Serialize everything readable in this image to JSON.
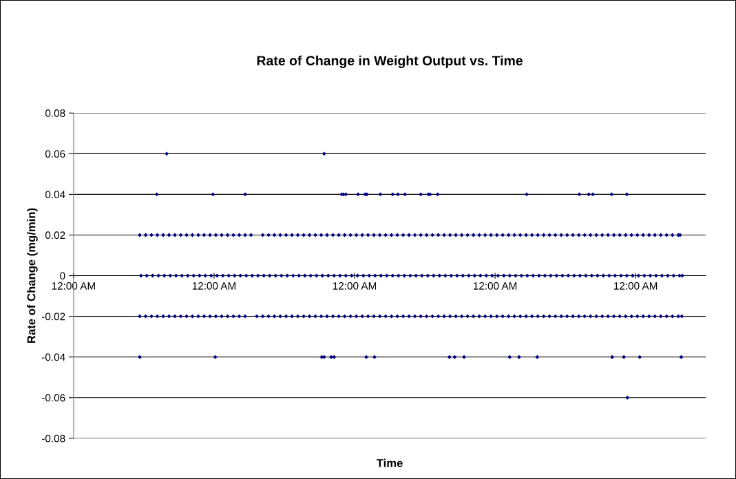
{
  "chart_data": {
    "type": "scatter",
    "title": "Rate of Change in Weight Output vs. Time",
    "xlabel": "Time",
    "ylabel": "Rate of Change (mg/min)",
    "xlim": [
      "2000-01-01T00:00",
      "2000-01-05T12:00"
    ],
    "xticks": [
      {
        "value": "2000-01-01T00:00",
        "label": "12:00 AM"
      },
      {
        "value": "2000-01-02T00:00",
        "label": "12:00 AM"
      },
      {
        "value": "2000-01-03T00:00",
        "label": "12:00 AM"
      },
      {
        "value": "2000-01-04T00:00",
        "label": "12:00 AM"
      },
      {
        "value": "2000-01-05T00:00",
        "label": "12:00 AM"
      }
    ],
    "ylim": [
      -0.08,
      0.08
    ],
    "yticks": [
      -0.08,
      -0.06,
      -0.04,
      -0.02,
      0,
      0.02,
      0.04,
      0.06,
      0.08
    ],
    "grid": "y",
    "marker": "diamond",
    "series": [
      {
        "color": "#000080",
        "x": [
          "2000-01-01T15:54",
          "2000-01-02T18:48",
          "2000-01-01T14:12",
          "2000-01-01T23:48",
          "2000-01-02T05:18",
          "2000-01-02T21:48",
          "2000-01-02T22:06",
          "2000-01-02T22:30",
          "2000-01-03T00:36",
          "2000-01-03T01:48",
          "2000-01-03T02:06",
          "2000-01-03T04:24",
          "2000-01-03T06:30",
          "2000-01-03T07:24",
          "2000-01-03T08:36",
          "2000-01-03T11:18",
          "2000-01-03T12:36",
          "2000-01-03T12:54",
          "2000-01-03T14:12",
          "2000-01-04T05:24",
          "2000-01-04T14:24",
          "2000-01-04T16:00",
          "2000-01-04T16:42",
          "2000-01-04T19:54",
          "2000-01-04T22:30",
          "2000-01-01T11:18",
          "2000-01-02T00:12",
          "2000-01-02T18:24",
          "2000-01-02T18:48",
          "2000-01-02T20:00",
          "2000-01-02T20:30",
          "2000-01-03T02:00",
          "2000-01-03T03:24",
          "2000-01-03T16:12",
          "2000-01-03T17:06",
          "2000-01-03T18:42",
          "2000-01-04T02:30",
          "2000-01-04T04:06",
          "2000-01-04T07:12",
          "2000-01-04T20:00",
          "2000-01-04T22:00",
          "2000-01-05T00:42",
          "2000-01-05T07:48",
          "2000-01-04T22:36"
        ],
        "values": [
          0.06,
          0.06,
          0.04,
          0.04,
          0.04,
          0.04,
          0.04,
          0.04,
          0.04,
          0.04,
          0.04,
          0.04,
          0.04,
          0.04,
          0.04,
          0.04,
          0.04,
          0.04,
          0.04,
          0.04,
          0.04,
          0.04,
          0.04,
          0.04,
          0.04,
          -0.04,
          -0.04,
          -0.04,
          -0.04,
          -0.04,
          -0.04,
          -0.04,
          -0.04,
          -0.04,
          -0.04,
          -0.04,
          -0.04,
          -0.04,
          -0.04,
          -0.04,
          -0.04,
          -0.04,
          -0.04,
          -0.06
        ]
      },
      {
        "color": "#000080",
        "x": [
          "2000-01-01T11:18",
          "2000-01-01T12:18",
          "2000-01-01T13:18",
          "2000-01-01T14:18",
          "2000-01-01T15:18",
          "2000-01-01T16:18",
          "2000-01-01T17:18",
          "2000-01-01T18:18",
          "2000-01-01T19:18",
          "2000-01-01T20:18",
          "2000-01-01T21:18",
          "2000-01-01T22:18",
          "2000-01-01T23:18",
          "2000-01-02T00:18",
          "2000-01-02T01:18",
          "2000-01-02T02:18",
          "2000-01-02T03:18",
          "2000-01-02T04:18",
          "2000-01-02T05:18",
          "2000-01-02T06:18",
          "2000-01-02T08:18",
          "2000-01-02T09:18",
          "2000-01-02T10:18",
          "2000-01-02T11:18",
          "2000-01-02T12:18",
          "2000-01-02T13:18",
          "2000-01-02T14:18",
          "2000-01-02T15:18",
          "2000-01-02T16:18",
          "2000-01-02T17:18",
          "2000-01-02T18:18",
          "2000-01-02T19:18",
          "2000-01-02T20:18",
          "2000-01-02T21:18",
          "2000-01-02T22:18",
          "2000-01-02T23:18",
          "2000-01-03T00:18",
          "2000-01-03T01:18",
          "2000-01-03T02:18",
          "2000-01-03T03:18",
          "2000-01-03T04:18",
          "2000-01-03T05:18",
          "2000-01-03T06:18",
          "2000-01-03T07:18",
          "2000-01-03T08:18",
          "2000-01-03T09:18",
          "2000-01-03T10:18",
          "2000-01-03T11:18",
          "2000-01-03T12:18",
          "2000-01-03T13:18",
          "2000-01-03T14:18",
          "2000-01-03T15:18",
          "2000-01-03T16:18",
          "2000-01-03T17:18",
          "2000-01-03T18:18",
          "2000-01-03T19:18",
          "2000-01-03T20:18",
          "2000-01-03T21:18",
          "2000-01-03T22:18",
          "2000-01-03T23:18",
          "2000-01-04T00:18",
          "2000-01-04T01:18",
          "2000-01-04T02:18",
          "2000-01-04T03:18",
          "2000-01-04T04:18",
          "2000-01-04T05:18",
          "2000-01-04T06:18",
          "2000-01-04T07:18",
          "2000-01-04T08:18",
          "2000-01-04T09:18",
          "2000-01-04T10:18",
          "2000-01-04T11:18",
          "2000-01-04T12:18",
          "2000-01-04T13:18",
          "2000-01-04T14:18",
          "2000-01-04T15:18",
          "2000-01-04T16:18",
          "2000-01-04T17:18",
          "2000-01-04T18:18",
          "2000-01-04T19:18",
          "2000-01-04T20:18",
          "2000-01-04T21:18",
          "2000-01-04T22:18",
          "2000-01-04T23:18",
          "2000-01-05T00:18",
          "2000-01-05T01:18",
          "2000-01-05T02:18",
          "2000-01-05T03:18",
          "2000-01-05T04:18",
          "2000-01-05T05:18",
          "2000-01-05T06:18",
          "2000-01-05T07:18",
          "2000-01-05T07:36"
        ],
        "values": [
          0.02,
          0.02,
          0.02,
          0.02,
          0.02,
          0.02,
          0.02,
          0.02,
          0.02,
          0.02,
          0.02,
          0.02,
          0.02,
          0.02,
          0.02,
          0.02,
          0.02,
          0.02,
          0.02,
          0.02,
          0.02,
          0.02,
          0.02,
          0.02,
          0.02,
          0.02,
          0.02,
          0.02,
          0.02,
          0.02,
          0.02,
          0.02,
          0.02,
          0.02,
          0.02,
          0.02,
          0.02,
          0.02,
          0.02,
          0.02,
          0.02,
          0.02,
          0.02,
          0.02,
          0.02,
          0.02,
          0.02,
          0.02,
          0.02,
          0.02,
          0.02,
          0.02,
          0.02,
          0.02,
          0.02,
          0.02,
          0.02,
          0.02,
          0.02,
          0.02,
          0.02,
          0.02,
          0.02,
          0.02,
          0.02,
          0.02,
          0.02,
          0.02,
          0.02,
          0.02,
          0.02,
          0.02,
          0.02,
          0.02,
          0.02,
          0.02,
          0.02,
          0.02,
          0.02,
          0.02,
          0.02,
          0.02,
          0.02,
          0.02,
          0.02,
          0.02,
          0.02,
          0.02,
          0.02,
          0.02,
          0.02,
          0.02,
          0.02
        ]
      },
      {
        "color": "#000080",
        "x": [
          "2000-01-01T11:18",
          "2000-01-01T12:18",
          "2000-01-01T13:18",
          "2000-01-01T14:18",
          "2000-01-01T15:18",
          "2000-01-01T16:18",
          "2000-01-01T17:18",
          "2000-01-01T18:18",
          "2000-01-01T19:18",
          "2000-01-01T20:18",
          "2000-01-01T21:18",
          "2000-01-01T22:18",
          "2000-01-01T23:18",
          "2000-01-02T00:18",
          "2000-01-02T01:18",
          "2000-01-02T02:18",
          "2000-01-02T03:18",
          "2000-01-02T04:18",
          "2000-01-02T05:18",
          "2000-01-02T07:18",
          "2000-01-02T08:18",
          "2000-01-02T09:18",
          "2000-01-02T10:18",
          "2000-01-02T11:18",
          "2000-01-02T12:18",
          "2000-01-02T13:18",
          "2000-01-02T14:18",
          "2000-01-02T15:18",
          "2000-01-02T16:18",
          "2000-01-02T17:18",
          "2000-01-02T18:18",
          "2000-01-02T19:18",
          "2000-01-02T20:18",
          "2000-01-02T21:18",
          "2000-01-02T22:18",
          "2000-01-02T23:18",
          "2000-01-03T00:18",
          "2000-01-03T01:18",
          "2000-01-03T02:18",
          "2000-01-03T03:18",
          "2000-01-03T04:18",
          "2000-01-03T05:18",
          "2000-01-03T06:18",
          "2000-01-03T07:18",
          "2000-01-03T08:18",
          "2000-01-03T09:18",
          "2000-01-03T10:18",
          "2000-01-03T11:18",
          "2000-01-03T12:18",
          "2000-01-03T13:18",
          "2000-01-03T14:18",
          "2000-01-03T15:18",
          "2000-01-03T16:18",
          "2000-01-03T17:18",
          "2000-01-03T18:18",
          "2000-01-03T19:18",
          "2000-01-03T20:18",
          "2000-01-03T21:18",
          "2000-01-03T22:18",
          "2000-01-03T23:18",
          "2000-01-04T00:18",
          "2000-01-04T01:18",
          "2000-01-04T02:18",
          "2000-01-04T03:18",
          "2000-01-04T04:18",
          "2000-01-04T05:18",
          "2000-01-04T06:18",
          "2000-01-04T07:18",
          "2000-01-04T08:18",
          "2000-01-04T09:18",
          "2000-01-04T10:18",
          "2000-01-04T11:18",
          "2000-01-04T12:18",
          "2000-01-04T13:18",
          "2000-01-04T14:18",
          "2000-01-04T15:18",
          "2000-01-04T16:18",
          "2000-01-04T17:18",
          "2000-01-04T18:18",
          "2000-01-04T19:18",
          "2000-01-04T20:18",
          "2000-01-04T21:18",
          "2000-01-04T22:18",
          "2000-01-04T23:18",
          "2000-01-05T00:18",
          "2000-01-05T01:18",
          "2000-01-05T02:18",
          "2000-01-05T03:18",
          "2000-01-05T04:18",
          "2000-01-05T05:18",
          "2000-01-05T06:18",
          "2000-01-05T07:18",
          "2000-01-05T07:54"
        ],
        "values": [
          -0.02,
          -0.02,
          -0.02,
          -0.02,
          -0.02,
          -0.02,
          -0.02,
          -0.02,
          -0.02,
          -0.02,
          -0.02,
          -0.02,
          -0.02,
          -0.02,
          -0.02,
          -0.02,
          -0.02,
          -0.02,
          -0.02,
          -0.02,
          -0.02,
          -0.02,
          -0.02,
          -0.02,
          -0.02,
          -0.02,
          -0.02,
          -0.02,
          -0.02,
          -0.02,
          -0.02,
          -0.02,
          -0.02,
          -0.02,
          -0.02,
          -0.02,
          -0.02,
          -0.02,
          -0.02,
          -0.02,
          -0.02,
          -0.02,
          -0.02,
          -0.02,
          -0.02,
          -0.02,
          -0.02,
          -0.02,
          -0.02,
          -0.02,
          -0.02,
          -0.02,
          -0.02,
          -0.02,
          -0.02,
          -0.02,
          -0.02,
          -0.02,
          -0.02,
          -0.02,
          -0.02,
          -0.02,
          -0.02,
          -0.02,
          -0.02,
          -0.02,
          -0.02,
          -0.02,
          -0.02,
          -0.02,
          -0.02,
          -0.02,
          -0.02,
          -0.02,
          -0.02,
          -0.02,
          -0.02,
          -0.02,
          -0.02,
          -0.02,
          -0.02,
          -0.02,
          -0.02,
          -0.02,
          -0.02,
          -0.02,
          -0.02,
          -0.02,
          -0.02,
          -0.02,
          -0.02,
          -0.02,
          -0.02
        ]
      },
      {
        "color": "#000080",
        "x": [
          "2000-01-01T11:30",
          "2000-01-01T12:30",
          "2000-01-01T13:30",
          "2000-01-01T14:30",
          "2000-01-01T15:30",
          "2000-01-01T16:30",
          "2000-01-01T17:30",
          "2000-01-01T18:30",
          "2000-01-01T19:30",
          "2000-01-01T20:30",
          "2000-01-01T21:30",
          "2000-01-01T22:30",
          "2000-01-01T23:30",
          "2000-01-02T00:30",
          "2000-01-02T01:30",
          "2000-01-02T02:30",
          "2000-01-02T03:30",
          "2000-01-02T04:30",
          "2000-01-02T05:30",
          "2000-01-02T06:30",
          "2000-01-02T07:30",
          "2000-01-02T08:30",
          "2000-01-02T09:30",
          "2000-01-02T10:30",
          "2000-01-02T11:30",
          "2000-01-02T12:30",
          "2000-01-02T13:30",
          "2000-01-02T14:30",
          "2000-01-02T15:30",
          "2000-01-02T16:30",
          "2000-01-02T17:30",
          "2000-01-02T18:30",
          "2000-01-02T19:30",
          "2000-01-02T20:30",
          "2000-01-02T21:30",
          "2000-01-02T22:30",
          "2000-01-02T23:30",
          "2000-01-03T00:30",
          "2000-01-03T01:30",
          "2000-01-03T02:30",
          "2000-01-03T03:30",
          "2000-01-03T04:30",
          "2000-01-03T05:30",
          "2000-01-03T06:30",
          "2000-01-03T07:30",
          "2000-01-03T08:30",
          "2000-01-03T09:30",
          "2000-01-03T10:30",
          "2000-01-03T11:30",
          "2000-01-03T12:30",
          "2000-01-03T13:30",
          "2000-01-03T14:30",
          "2000-01-03T15:30",
          "2000-01-03T16:30",
          "2000-01-03T17:30",
          "2000-01-03T18:30",
          "2000-01-03T19:30",
          "2000-01-03T20:30",
          "2000-01-03T21:30",
          "2000-01-03T22:30",
          "2000-01-03T23:30",
          "2000-01-04T00:30",
          "2000-01-04T01:30",
          "2000-01-04T02:30",
          "2000-01-04T03:30",
          "2000-01-04T04:30",
          "2000-01-04T05:30",
          "2000-01-04T06:30",
          "2000-01-04T07:30",
          "2000-01-04T08:30",
          "2000-01-04T09:30",
          "2000-01-04T10:30",
          "2000-01-04T11:30",
          "2000-01-04T12:30",
          "2000-01-04T13:30",
          "2000-01-04T14:30",
          "2000-01-04T15:30",
          "2000-01-04T16:30",
          "2000-01-04T17:30",
          "2000-01-04T18:30",
          "2000-01-04T19:30",
          "2000-01-04T20:30",
          "2000-01-04T21:30",
          "2000-01-04T22:30",
          "2000-01-04T23:30",
          "2000-01-05T00:30",
          "2000-01-05T01:30",
          "2000-01-05T02:30",
          "2000-01-05T03:30",
          "2000-01-05T04:30",
          "2000-01-05T05:30",
          "2000-01-05T06:30",
          "2000-01-05T07:30",
          "2000-01-05T08:00"
        ],
        "values": [
          0,
          0,
          0,
          0,
          0,
          0,
          0,
          0,
          0,
          0,
          0,
          0,
          0,
          0,
          0,
          0,
          0,
          0,
          0,
          0,
          0,
          0,
          0,
          0,
          0,
          0,
          0,
          0,
          0,
          0,
          0,
          0,
          0,
          0,
          0,
          0,
          0,
          0,
          0,
          0,
          0,
          0,
          0,
          0,
          0,
          0,
          0,
          0,
          0,
          0,
          0,
          0,
          0,
          0,
          0,
          0,
          0,
          0,
          0,
          0,
          0,
          0,
          0,
          0,
          0,
          0,
          0,
          0,
          0,
          0,
          0,
          0,
          0,
          0,
          0,
          0,
          0,
          0,
          0,
          0,
          0,
          0,
          0,
          0,
          0,
          0,
          0,
          0,
          0,
          0,
          0,
          0,
          0,
          0
        ]
      }
    ]
  }
}
